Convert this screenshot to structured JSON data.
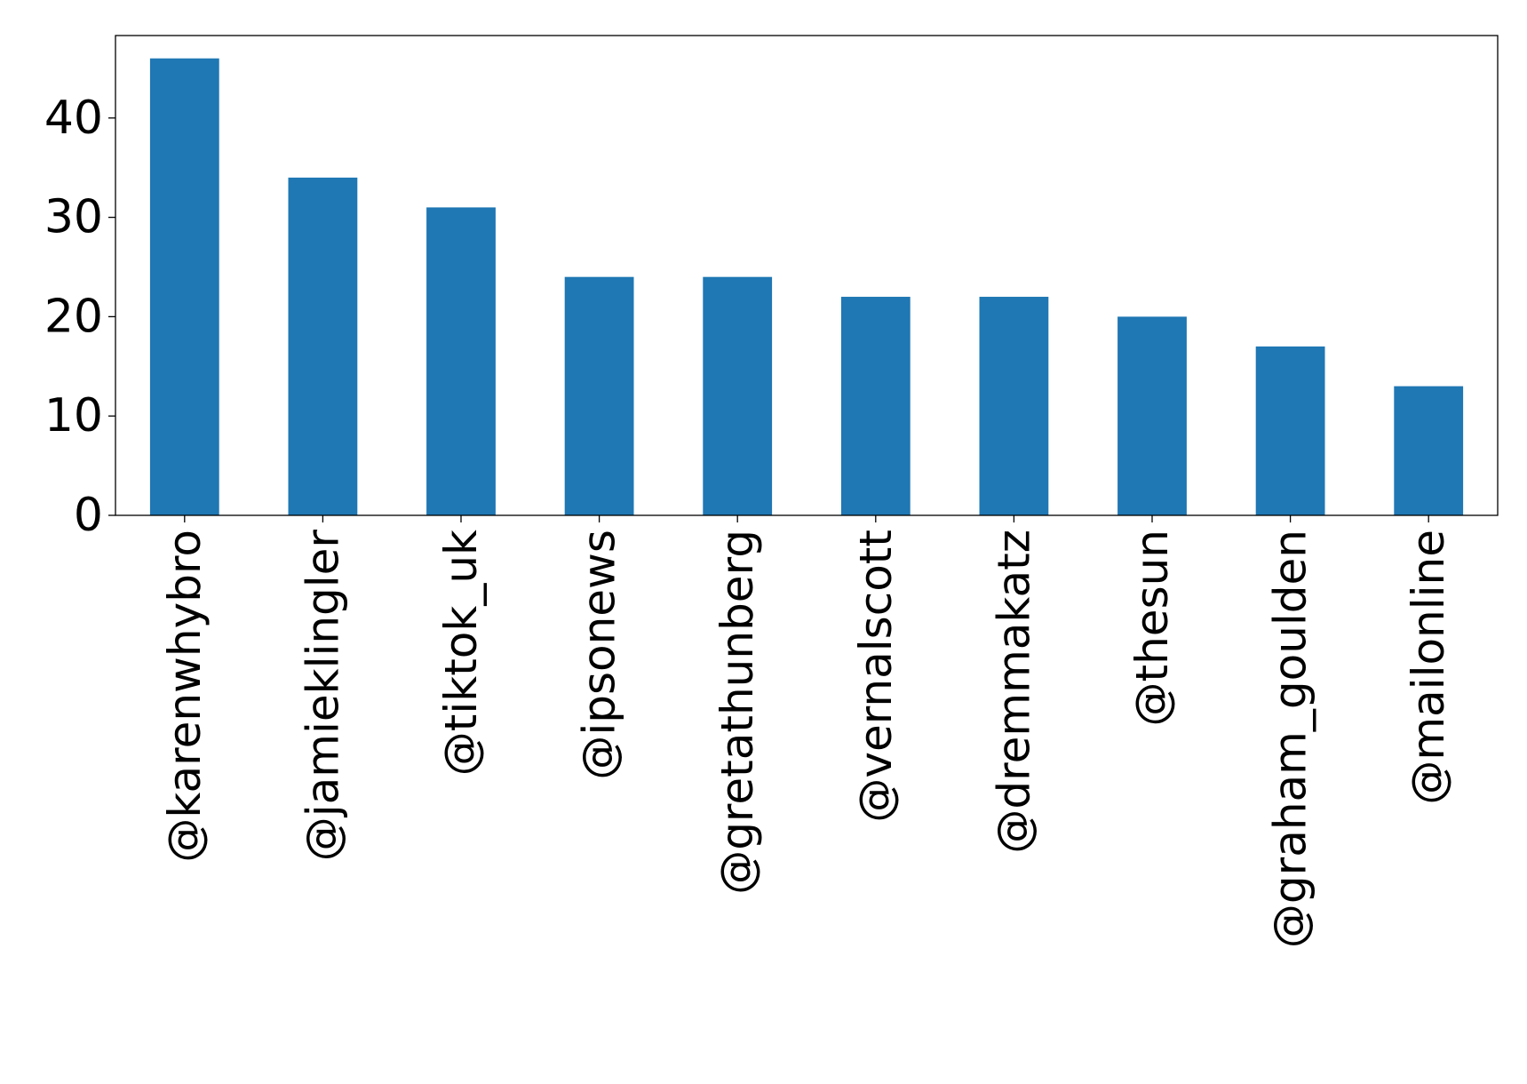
{
  "chart_data": {
    "type": "bar",
    "title": "",
    "xlabel": "",
    "ylabel": "",
    "categories": [
      "@karenwhybro",
      "@jamieklingler",
      "@tiktok_uk",
      "@ipsonews",
      "@gretathunberg",
      "@vernalscott",
      "@dremmakatz",
      "@thesun",
      "@graham_goulden",
      "@mailonline"
    ],
    "values": [
      46,
      34,
      31,
      24,
      24,
      22,
      22,
      20,
      17,
      13
    ],
    "ylim": [
      0,
      48.3
    ],
    "yticks": [
      0,
      10,
      20,
      30,
      40
    ],
    "grid": false,
    "legend": "none",
    "bar_color": "#1f77b4"
  }
}
